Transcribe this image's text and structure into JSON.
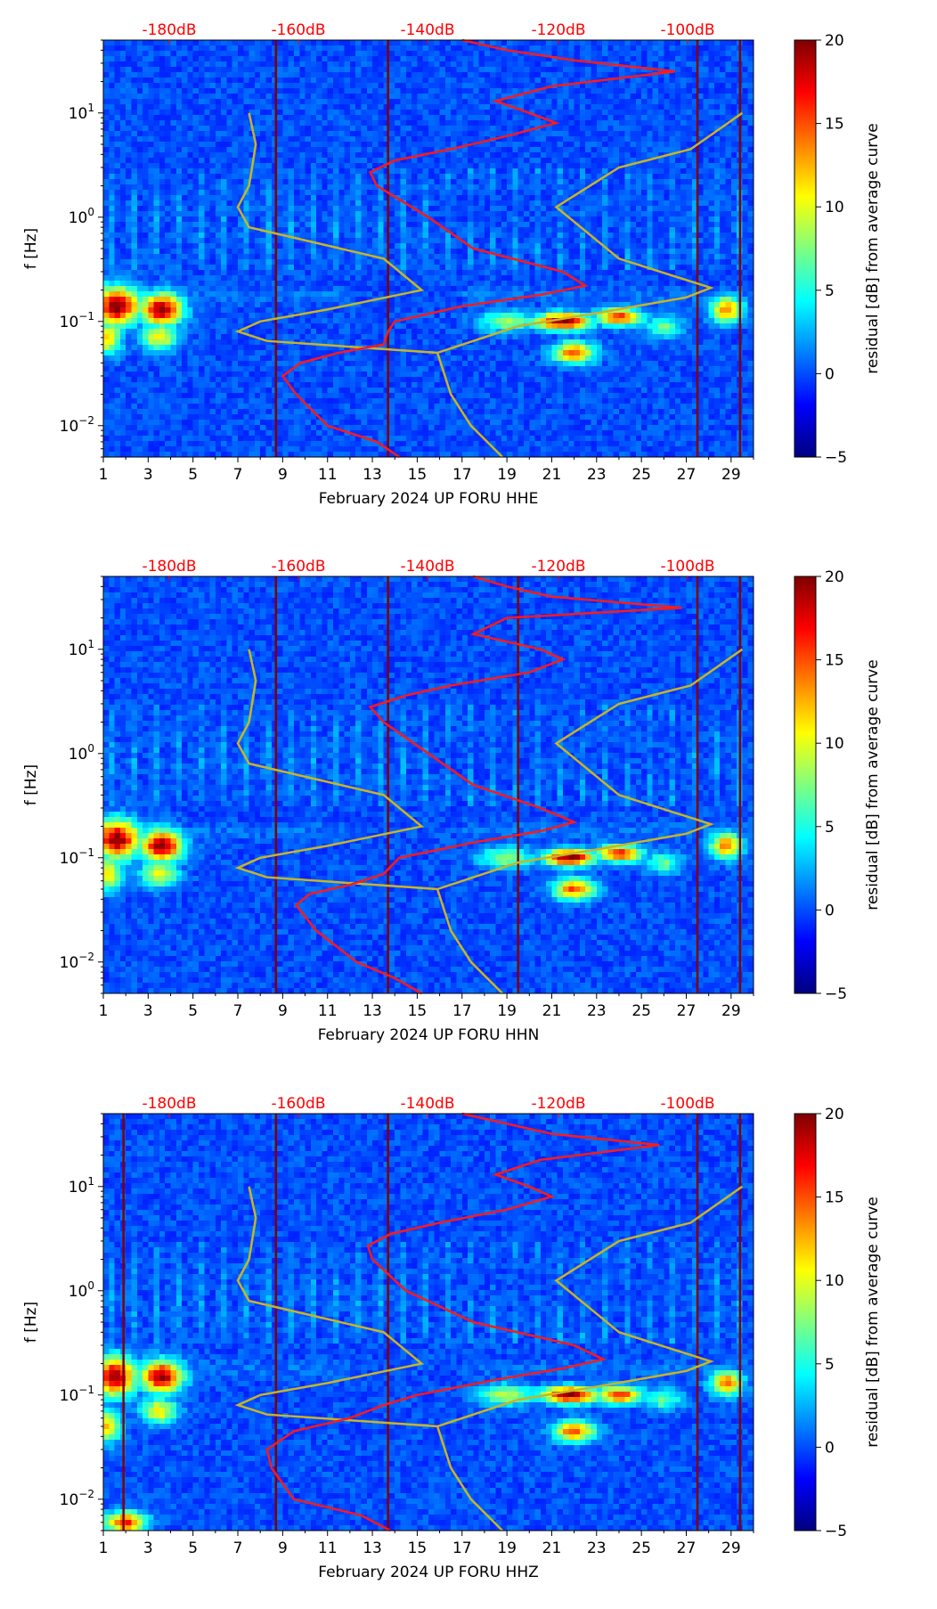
{
  "colors": {
    "median_curve": "#ff1a1a",
    "noise_model": "#c8b428",
    "db_labels": "#ff0000",
    "axis": "#000000"
  },
  "colorbar": {
    "label": "residual [dB] from average curve",
    "ticks": [
      "20",
      "15",
      "10",
      "5",
      "0",
      "−5"
    ],
    "range": [
      -5,
      20
    ],
    "colormap": "jet"
  },
  "shared_axes": {
    "ylabel": "f [Hz]",
    "y_ticks": [
      {
        "label": "10",
        "exp": "1",
        "value": 10
      },
      {
        "label": "10",
        "exp": "0",
        "value": 1
      },
      {
        "label": "10",
        "exp": "−1",
        "value": 0.1
      },
      {
        "label": "10",
        "exp": "−2",
        "value": 0.01
      }
    ],
    "ylim": [
      0.005,
      50
    ],
    "x_ticks": [
      "1",
      "3",
      "5",
      "7",
      "9",
      "11",
      "13",
      "15",
      "17",
      "19",
      "21",
      "23",
      "25",
      "27",
      "29"
    ],
    "xlim": [
      1,
      30
    ],
    "top_db_labels": [
      "-180dB",
      "-160dB",
      "-140dB",
      "-120dB",
      "-100dB"
    ]
  },
  "chart_data": [
    {
      "type": "heatmap",
      "title": "",
      "xlabel": "February 2024 UP FORU  HHE",
      "ylabel": "f [Hz]",
      "median_curve": [
        [
          0.005,
          14.2
        ],
        [
          0.007,
          13.2
        ],
        [
          0.01,
          11.0
        ],
        [
          0.02,
          9.6
        ],
        [
          0.03,
          9.0
        ],
        [
          0.04,
          9.8
        ],
        [
          0.05,
          11.5
        ],
        [
          0.06,
          13.5
        ],
        [
          0.08,
          13.7
        ],
        [
          0.1,
          14.0
        ],
        [
          0.14,
          17.0
        ],
        [
          0.18,
          20.5
        ],
        [
          0.22,
          22.5
        ],
        [
          0.3,
          21.5
        ],
        [
          0.5,
          17.5
        ],
        [
          1.0,
          15.5
        ],
        [
          2.0,
          13.2
        ],
        [
          2.7,
          12.9
        ],
        [
          3.5,
          14.0
        ],
        [
          4.5,
          16.5
        ],
        [
          6.0,
          19.0
        ],
        [
          8.0,
          21.2
        ],
        [
          10,
          20.0
        ],
        [
          13,
          18.5
        ],
        [
          18,
          21.0
        ],
        [
          25,
          26.5
        ],
        [
          32,
          22.0
        ],
        [
          40,
          19.0
        ],
        [
          50,
          17.0
        ]
      ],
      "noise_model": [
        [
          0.005,
          18.8
        ],
        [
          0.01,
          17.4
        ],
        [
          0.02,
          16.5
        ],
        [
          0.05,
          15.9
        ],
        [
          0.065,
          8.3
        ],
        [
          0.08,
          7.0
        ],
        [
          0.1,
          8.0
        ],
        [
          0.13,
          11.0
        ],
        [
          0.2,
          15.2
        ],
        [
          0.4,
          13.5
        ],
        [
          0.8,
          7.5
        ],
        [
          1.25,
          7.0
        ],
        [
          2.0,
          7.5
        ],
        [
          5,
          7.8
        ],
        [
          10,
          7.5
        ]
      ],
      "noise_model_right": [
        [
          0.05,
          15.9
        ],
        [
          0.09,
          19.5
        ],
        [
          0.12,
          23.0
        ],
        [
          0.17,
          27.0
        ],
        [
          0.21,
          28.1
        ],
        [
          0.4,
          24.0
        ],
        [
          1.25,
          21.2
        ],
        [
          3.0,
          24.0
        ],
        [
          4.5,
          27.2
        ],
        [
          10,
          29.5
        ]
      ],
      "vertical_lines": [
        8.7,
        13.7,
        27.5,
        29.4
      ],
      "blobs": [
        {
          "x": 1.6,
          "f": 0.14,
          "v": 20,
          "sx": 1.0,
          "sf": 0.18
        },
        {
          "x": 3.6,
          "f": 0.13,
          "v": 20,
          "sx": 0.9,
          "sf": 0.15
        },
        {
          "x": 1.2,
          "f": 0.07,
          "v": 12,
          "sx": 0.6,
          "sf": 0.15
        },
        {
          "x": 3.5,
          "f": 0.07,
          "v": 11,
          "sx": 0.8,
          "sf": 0.12
        },
        {
          "x": 21.5,
          "f": 0.1,
          "v": 20,
          "sx": 1.2,
          "sf": 0.08
        },
        {
          "x": 24.0,
          "f": 0.11,
          "v": 16,
          "sx": 1.0,
          "sf": 0.08
        },
        {
          "x": 22.0,
          "f": 0.05,
          "v": 15,
          "sx": 0.9,
          "sf": 0.1
        },
        {
          "x": 28.8,
          "f": 0.13,
          "v": 14,
          "sx": 0.7,
          "sf": 0.12
        },
        {
          "x": 19.0,
          "f": 0.1,
          "v": 8,
          "sx": 1.2,
          "sf": 0.1
        },
        {
          "x": 26.0,
          "f": 0.09,
          "v": 7,
          "sx": 0.8,
          "sf": 0.1
        }
      ]
    },
    {
      "type": "heatmap",
      "title": "",
      "xlabel": "February 2024 UP FORU  HHN",
      "ylabel": "f [Hz]",
      "median_curve": [
        [
          0.005,
          15.2
        ],
        [
          0.007,
          14.0
        ],
        [
          0.01,
          12.3
        ],
        [
          0.02,
          10.5
        ],
        [
          0.035,
          9.6
        ],
        [
          0.045,
          10.2
        ],
        [
          0.055,
          12.0
        ],
        [
          0.07,
          13.5
        ],
        [
          0.1,
          14.2
        ],
        [
          0.14,
          17.5
        ],
        [
          0.18,
          20.5
        ],
        [
          0.22,
          22.0
        ],
        [
          0.3,
          20.5
        ],
        [
          0.5,
          17.5
        ],
        [
          1.0,
          15.5
        ],
        [
          2.0,
          13.5
        ],
        [
          2.8,
          12.9
        ],
        [
          3.6,
          14.5
        ],
        [
          4.5,
          16.5
        ],
        [
          6.0,
          20.0
        ],
        [
          8.0,
          21.5
        ],
        [
          10,
          20.5
        ],
        [
          14,
          17.5
        ],
        [
          20,
          19.0
        ],
        [
          25,
          26.8
        ],
        [
          32,
          21.0
        ],
        [
          40,
          19.0
        ],
        [
          50,
          17.5
        ]
      ],
      "noise_model": [
        [
          0.005,
          18.8
        ],
        [
          0.01,
          17.4
        ],
        [
          0.02,
          16.5
        ],
        [
          0.05,
          15.9
        ],
        [
          0.065,
          8.3
        ],
        [
          0.08,
          7.0
        ],
        [
          0.1,
          8.0
        ],
        [
          0.13,
          11.0
        ],
        [
          0.2,
          15.2
        ],
        [
          0.4,
          13.5
        ],
        [
          0.8,
          7.5
        ],
        [
          1.25,
          7.0
        ],
        [
          2.0,
          7.5
        ],
        [
          5,
          7.8
        ],
        [
          10,
          7.5
        ]
      ],
      "noise_model_right": [
        [
          0.05,
          15.9
        ],
        [
          0.09,
          19.5
        ],
        [
          0.12,
          23.0
        ],
        [
          0.17,
          27.0
        ],
        [
          0.21,
          28.1
        ],
        [
          0.4,
          24.0
        ],
        [
          1.25,
          21.2
        ],
        [
          3.0,
          24.0
        ],
        [
          4.5,
          27.2
        ],
        [
          10,
          29.5
        ]
      ],
      "vertical_lines": [
        8.7,
        13.7,
        19.5,
        27.5,
        29.4
      ],
      "blobs": [
        {
          "x": 1.6,
          "f": 0.15,
          "v": 20,
          "sx": 1.0,
          "sf": 0.18
        },
        {
          "x": 3.6,
          "f": 0.13,
          "v": 20,
          "sx": 0.9,
          "sf": 0.15
        },
        {
          "x": 1.2,
          "f": 0.07,
          "v": 12,
          "sx": 0.6,
          "sf": 0.15
        },
        {
          "x": 3.5,
          "f": 0.07,
          "v": 11,
          "sx": 0.8,
          "sf": 0.12
        },
        {
          "x": 21.8,
          "f": 0.1,
          "v": 20,
          "sx": 1.1,
          "sf": 0.08
        },
        {
          "x": 24.0,
          "f": 0.11,
          "v": 16,
          "sx": 1.0,
          "sf": 0.08
        },
        {
          "x": 22.0,
          "f": 0.05,
          "v": 15,
          "sx": 0.9,
          "sf": 0.1
        },
        {
          "x": 28.8,
          "f": 0.13,
          "v": 14,
          "sx": 0.7,
          "sf": 0.12
        },
        {
          "x": 19.0,
          "f": 0.1,
          "v": 8,
          "sx": 1.2,
          "sf": 0.1
        },
        {
          "x": 26.0,
          "f": 0.09,
          "v": 7,
          "sx": 0.8,
          "sf": 0.1
        }
      ]
    },
    {
      "type": "heatmap",
      "title": "",
      "xlabel": "February 2024 UP FORU  HHZ",
      "ylabel": "f [Hz]",
      "median_curve": [
        [
          0.005,
          13.8
        ],
        [
          0.007,
          12.5
        ],
        [
          0.01,
          9.5
        ],
        [
          0.02,
          8.5
        ],
        [
          0.03,
          8.3
        ],
        [
          0.045,
          9.5
        ],
        [
          0.06,
          12.0
        ],
        [
          0.08,
          13.5
        ],
        [
          0.1,
          15.0
        ],
        [
          0.14,
          18.5
        ],
        [
          0.18,
          21.5
        ],
        [
          0.22,
          23.3
        ],
        [
          0.3,
          22.0
        ],
        [
          0.5,
          17.5
        ],
        [
          1.0,
          14.5
        ],
        [
          2.0,
          13.0
        ],
        [
          2.7,
          12.8
        ],
        [
          3.5,
          13.8
        ],
        [
          4.5,
          16.0
        ],
        [
          6.0,
          19.0
        ],
        [
          8.0,
          21.0
        ],
        [
          10,
          20.0
        ],
        [
          13,
          18.5
        ],
        [
          18,
          20.5
        ],
        [
          25,
          25.8
        ],
        [
          32,
          21.0
        ],
        [
          40,
          19.0
        ],
        [
          50,
          17.0
        ]
      ],
      "noise_model": [
        [
          0.005,
          18.8
        ],
        [
          0.01,
          17.4
        ],
        [
          0.02,
          16.5
        ],
        [
          0.05,
          15.9
        ],
        [
          0.065,
          8.3
        ],
        [
          0.08,
          7.0
        ],
        [
          0.1,
          8.0
        ],
        [
          0.13,
          11.0
        ],
        [
          0.2,
          15.2
        ],
        [
          0.4,
          13.5
        ],
        [
          0.8,
          7.5
        ],
        [
          1.25,
          7.0
        ],
        [
          2.0,
          7.5
        ],
        [
          5,
          7.8
        ],
        [
          10,
          7.5
        ]
      ],
      "noise_model_right": [
        [
          0.05,
          15.9
        ],
        [
          0.09,
          19.5
        ],
        [
          0.12,
          23.0
        ],
        [
          0.17,
          27.0
        ],
        [
          0.21,
          28.1
        ],
        [
          0.4,
          24.0
        ],
        [
          1.25,
          21.2
        ],
        [
          3.0,
          24.0
        ],
        [
          4.5,
          27.2
        ],
        [
          10,
          29.5
        ]
      ],
      "vertical_lines": [
        1.9,
        8.7,
        13.7,
        27.5,
        29.4
      ],
      "blobs": [
        {
          "x": 1.5,
          "f": 0.15,
          "v": 20,
          "sx": 0.9,
          "sf": 0.18
        },
        {
          "x": 3.6,
          "f": 0.15,
          "v": 20,
          "sx": 0.9,
          "sf": 0.15
        },
        {
          "x": 1.2,
          "f": 0.05,
          "v": 12,
          "sx": 0.6,
          "sf": 0.15
        },
        {
          "x": 3.5,
          "f": 0.07,
          "v": 11,
          "sx": 0.8,
          "sf": 0.12
        },
        {
          "x": 21.8,
          "f": 0.1,
          "v": 20,
          "sx": 1.2,
          "sf": 0.08
        },
        {
          "x": 24.0,
          "f": 0.1,
          "v": 16,
          "sx": 1.0,
          "sf": 0.08
        },
        {
          "x": 22.0,
          "f": 0.045,
          "v": 15,
          "sx": 0.9,
          "sf": 0.1
        },
        {
          "x": 28.8,
          "f": 0.13,
          "v": 14,
          "sx": 0.7,
          "sf": 0.12
        },
        {
          "x": 19.0,
          "f": 0.1,
          "v": 9,
          "sx": 1.2,
          "sf": 0.1
        },
        {
          "x": 26.0,
          "f": 0.09,
          "v": 7,
          "sx": 0.8,
          "sf": 0.1
        },
        {
          "x": 2.0,
          "f": 0.006,
          "v": 16,
          "sx": 0.9,
          "sf": 0.1
        }
      ]
    }
  ]
}
